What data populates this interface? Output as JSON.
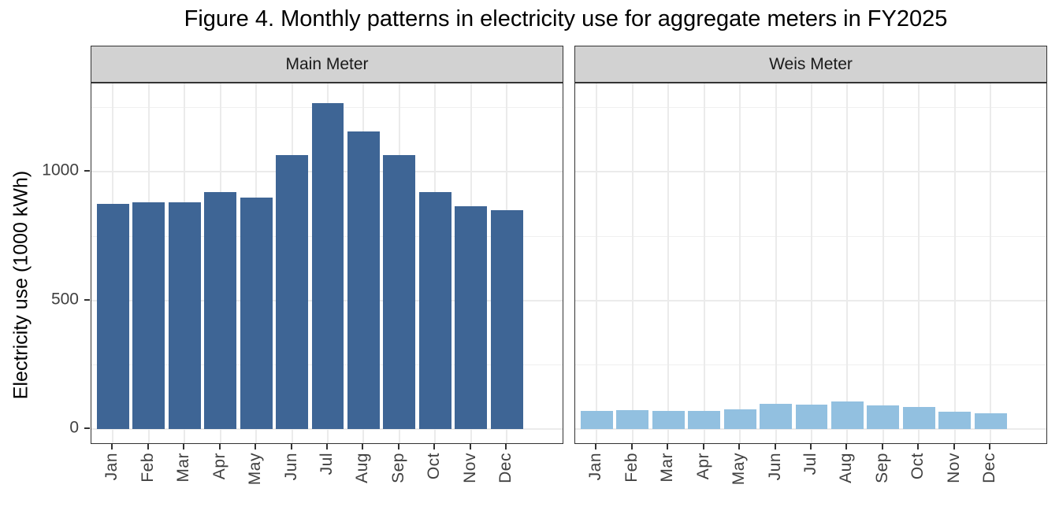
{
  "chart_data": {
    "type": "bar",
    "title": "Figure 4. Monthly patterns in electricity use for aggregate meters in FY2025",
    "ylabel": "Electricity use (1000 kWh)",
    "xlabel": "",
    "categories": [
      "Jan",
      "Feb",
      "Mar",
      "Apr",
      "May",
      "Jun",
      "Jul",
      "Aug",
      "Sep",
      "Oct",
      "Nov",
      "Dec"
    ],
    "facets": [
      {
        "name": "Main Meter",
        "color": "#3E6595",
        "values": [
          875,
          882,
          880,
          920,
          900,
          1065,
          1265,
          1155,
          1065,
          920,
          865,
          850
        ]
      },
      {
        "name": "Weis Meter",
        "color": "#92C0E0",
        "values": [
          70,
          72,
          71,
          70,
          75,
          97,
          94,
          108,
          92,
          87,
          66,
          62
        ]
      }
    ],
    "y_ticks": [
      0,
      500,
      1000
    ],
    "y_minor_ticks": [
      250,
      750,
      1250
    ],
    "ylim": [
      0,
      1343
    ],
    "grid": true,
    "legend": "none",
    "colors": {
      "strip_bg": "#D2D2D2",
      "panel_border": "#333333",
      "grid_major": "#EBEBEB",
      "grid_minor": "#F0F0F0",
      "tick": "#333333",
      "tick_label": "#404040",
      "title": "#000000"
    }
  }
}
